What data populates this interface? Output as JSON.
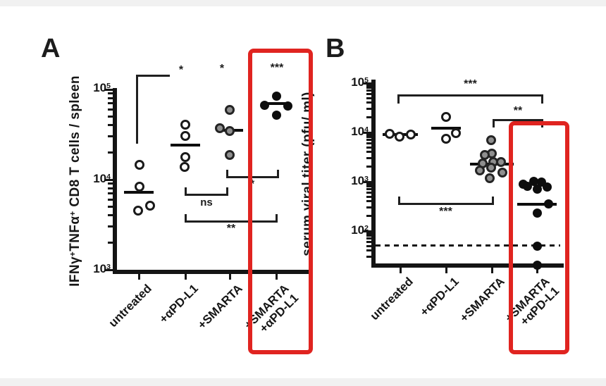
{
  "panel_labels": [
    "A",
    "B"
  ],
  "colors": {
    "highlight_box": "#e02420",
    "open_marker": "#ffffff",
    "gray_marker": "#8f8f8f",
    "filled_marker": "#0d0d0d",
    "axis": "#141414"
  },
  "chart_data": [
    {
      "panel": "A",
      "type": "scatter",
      "yscale": "log",
      "ylabel": "IFNγ+TNFα+ CD8 T cells / spleen",
      "ylabel_parts": {
        "t1": "IFNγ",
        "s1": "+",
        "t2": "TNFα",
        "s2": "+",
        "t3": " CD8 T cells / spleen"
      },
      "ylim": [
        1000,
        100000
      ],
      "ytick_labels": [
        {
          "base": "10",
          "exp": "3"
        },
        {
          "base": "10",
          "exp": "4"
        },
        {
          "base": "10",
          "exp": "5"
        }
      ],
      "groups": [
        {
          "name": "untreated",
          "marker": "open",
          "values": [
            14600,
            8400,
            5100,
            4500
          ],
          "median": 7200
        },
        {
          "name": "+αPD-L1",
          "marker": "open",
          "values": [
            41000,
            30500,
            17800,
            13800
          ],
          "median": 24000
        },
        {
          "name": "+SMARTA",
          "marker": "gray",
          "values": [
            59000,
            37000,
            34600,
            18700
          ],
          "median": 35000
        },
        {
          "name": "+SMARTA +αPD-L1",
          "name_line1": "+SMARTA",
          "name_line2": "+αPD-L1",
          "marker": "filled",
          "values": [
            85000,
            67000,
            65000,
            52000
          ],
          "median": 70000,
          "highlighted": true
        }
      ],
      "significance": [
        {
          "comparison": "untreated vs +αPD-L1",
          "label": "*"
        },
        {
          "comparison": "untreated vs +SMARTA",
          "label": "*"
        },
        {
          "comparison": "untreated vs +SMARTA+αPD-L1",
          "label": "***"
        },
        {
          "comparison": "+SMARTA vs +SMARTA+αPD-L1",
          "label": "*"
        },
        {
          "comparison": "+αPD-L1 vs +SMARTA",
          "label": "ns"
        },
        {
          "comparison": "+αPD-L1 vs +SMARTA+αPD-L1",
          "label": "**"
        }
      ]
    },
    {
      "panel": "B",
      "type": "scatter",
      "yscale": "log",
      "ylabel": "serum viral titer (pfu/ ml)",
      "ylim": [
        20,
        100000
      ],
      "ytick_labels": [
        {
          "base": "10",
          "exp": "2"
        },
        {
          "base": "10",
          "exp": "3"
        },
        {
          "base": "10",
          "exp": "4"
        },
        {
          "base": "10",
          "exp": "5"
        }
      ],
      "detection_limit": 50,
      "groups": [
        {
          "name": "untreated",
          "marker": "open",
          "values": [
            9400,
            9100,
            8200
          ],
          "median": 9000
        },
        {
          "name": "+αPD-L1",
          "marker": "open",
          "values": [
            20600,
            9700,
            7400
          ],
          "median": 12000
        },
        {
          "name": "+SMARTA",
          "marker": "gray",
          "values": [
            7000,
            3700,
            3500,
            2500,
            2500,
            2350,
            1900,
            1700,
            1530,
            1180
          ],
          "median": 2300
        },
        {
          "name": "+SMARTA +αPD-L1",
          "name_line1": "+SMARTA",
          "name_line2": "+αPD-L1",
          "marker": "filled",
          "values": [
            880,
            820,
            1030,
            970,
            770,
            700,
            350,
            235,
            50,
            20
          ],
          "median": 350,
          "highlighted": true
        }
      ],
      "significance": [
        {
          "comparison": "untreated vs +SMARTA+αPD-L1",
          "label": "***"
        },
        {
          "comparison": "+SMARTA vs +SMARTA+αPD-L1",
          "label": "**"
        },
        {
          "comparison": "untreated vs +SMARTA",
          "label": "***"
        }
      ]
    }
  ]
}
